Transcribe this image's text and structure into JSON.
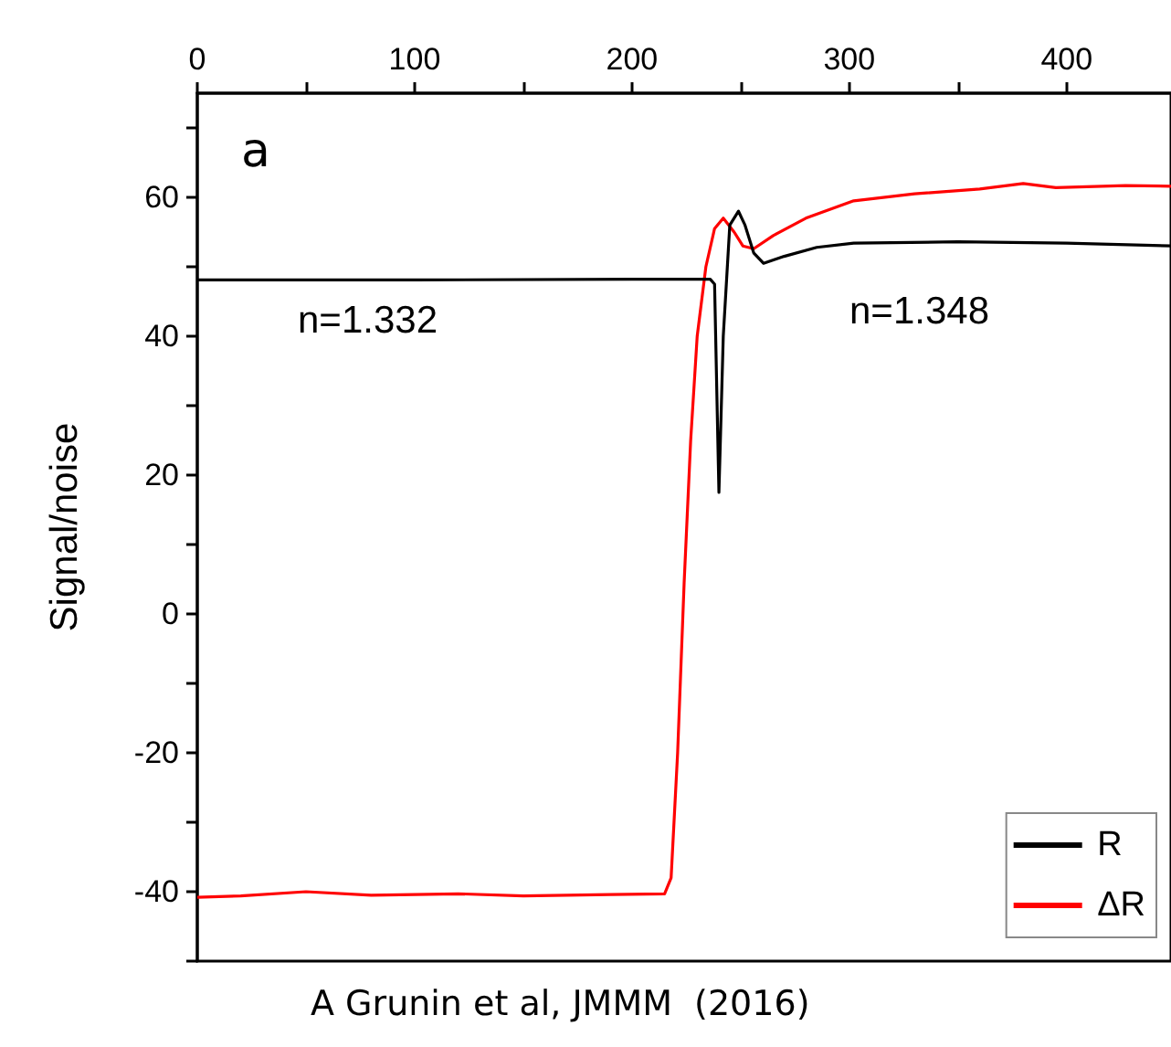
{
  "chart_data": {
    "type": "line",
    "ylabel": "Signal/noise",
    "xlim": [
      0,
      448
    ],
    "xticks": [
      0,
      {
        "value": 50,
        "label": null
      },
      100,
      {
        "value": 150,
        "label": null
      },
      200,
      {
        "value": 250,
        "label": null
      },
      300,
      {
        "value": 350,
        "label": null
      },
      400
    ],
    "ylim": [
      -50,
      75
    ],
    "yticks": [
      {
        "value": -50,
        "label": null
      },
      -40,
      {
        "value": -30,
        "label": null
      },
      -20,
      {
        "value": -10,
        "label": null
      },
      0,
      {
        "value": 10,
        "label": null
      },
      20,
      {
        "value": 30,
        "label": null
      },
      40,
      {
        "value": 50,
        "label": null
      },
      60,
      {
        "value": 70,
        "label": null
      }
    ],
    "series": [
      {
        "name": "R",
        "color": "#000000",
        "x": [
          0,
          100,
          200,
          236,
          238,
          240,
          242,
          245,
          249,
          252,
          256,
          260.5,
          270,
          285,
          302,
          350,
          400,
          448
        ],
        "values": [
          48.1,
          48.1,
          48.2,
          48.2,
          47.5,
          17.5,
          40,
          56,
          58,
          56,
          52,
          50.5,
          51.5,
          52.8,
          53.4,
          53.6,
          53.4,
          53
        ]
      },
      {
        "name": "ΔR",
        "color": "#ff0000",
        "x": [
          0,
          20,
          50,
          80,
          120,
          150,
          190,
          215,
          218,
          221,
          224,
          227,
          230,
          234,
          238,
          242,
          247,
          251,
          256,
          265,
          280,
          302,
          330,
          360,
          380,
          395,
          427,
          448
        ],
        "values": [
          -40.8,
          -40.6,
          -40,
          -40.5,
          -40.3,
          -40.6,
          -40.4,
          -40.3,
          -38,
          -20,
          4.5,
          25,
          40,
          50,
          55.5,
          57,
          55,
          53,
          52.6,
          54.5,
          57,
          59.5,
          60.5,
          61.2,
          62,
          61.4,
          61.7,
          61.6
        ]
      }
    ],
    "annotations": [
      "a",
      "n=1.332",
      "n=1.348",
      "A Grunin et al, JMMM  (2016)"
    ],
    "legend": "bottom right",
    "grid": false,
    "marker": "none",
    "line_style": "solid"
  }
}
